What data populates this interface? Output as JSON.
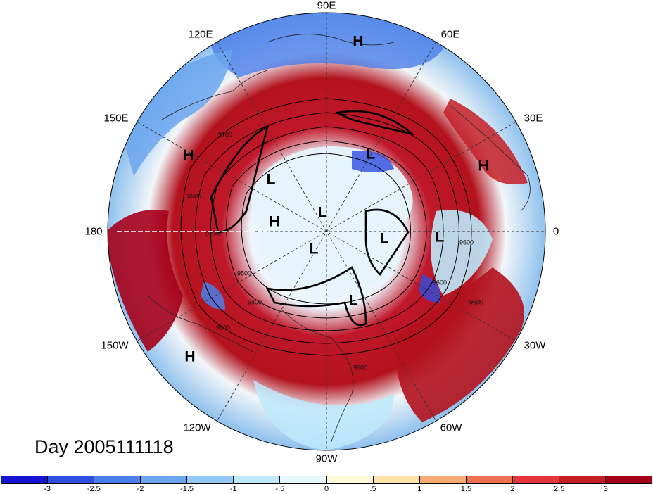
{
  "map": {
    "title": "",
    "projection": "north-polar-stereographic",
    "variable_shaded": "anomaly",
    "contour_interval": 100,
    "longitude_labels": [
      {
        "lon": 90,
        "text": "90E"
      },
      {
        "lon": 60,
        "text": "60E"
      },
      {
        "lon": 120,
        "text": "120E"
      },
      {
        "lon": 150,
        "text": "150E"
      },
      {
        "lon": 30,
        "text": "30E"
      },
      {
        "lon": 180,
        "text": "180"
      },
      {
        "lon": 0,
        "text": "0"
      },
      {
        "lon": -150,
        "text": "150W"
      },
      {
        "lon": -30,
        "text": "30W"
      },
      {
        "lon": -120,
        "text": "120W"
      },
      {
        "lon": -60,
        "text": "60W"
      },
      {
        "lon": -90,
        "text": "90W"
      }
    ],
    "pressure_centers": [
      {
        "type": "H",
        "text": "H"
      },
      {
        "type": "H",
        "text": "H"
      },
      {
        "type": "H",
        "text": "H"
      },
      {
        "type": "H",
        "text": "H"
      },
      {
        "type": "H",
        "text": "H"
      },
      {
        "type": "L",
        "text": "L"
      },
      {
        "type": "L",
        "text": "L"
      },
      {
        "type": "L",
        "text": "L"
      },
      {
        "type": "L",
        "text": "L"
      },
      {
        "type": "L",
        "text": "L"
      },
      {
        "type": "L",
        "text": "L"
      },
      {
        "type": "L",
        "text": "L"
      }
    ],
    "contour_labels": [
      "9700",
      "9600",
      "9200",
      "9500",
      "9400",
      "9600",
      "9600",
      "9600",
      "9600",
      "9600"
    ],
    "day_label": "Day 2005111118",
    "colors": {
      "strong_positive": "#b3121d",
      "positive": "#e8373a",
      "weak_positive": "#f7b27a",
      "neutral": "#fffbe6",
      "weak_negative": "#c6e8fb",
      "negative": "#6aaef0",
      "strong_negative": "#2346d6",
      "contour": "#000000",
      "grid": "#333333"
    }
  },
  "colorbar": {
    "ticks": [
      "-3",
      "-2.5",
      "-2",
      "-1.5",
      "-1",
      "-.5",
      "0",
      ".5",
      "1",
      "1.5",
      "2",
      "2.5",
      "3"
    ],
    "colors": [
      "#1414d2",
      "#2e4ee0",
      "#4a7ee8",
      "#6aa5ef",
      "#91c9f7",
      "#bde9fb",
      "#e6f8fc",
      "#fffbd9",
      "#fde3a5",
      "#f6ab73",
      "#ee7252",
      "#e4353a",
      "#c31d26",
      "#a5001a"
    ]
  }
}
